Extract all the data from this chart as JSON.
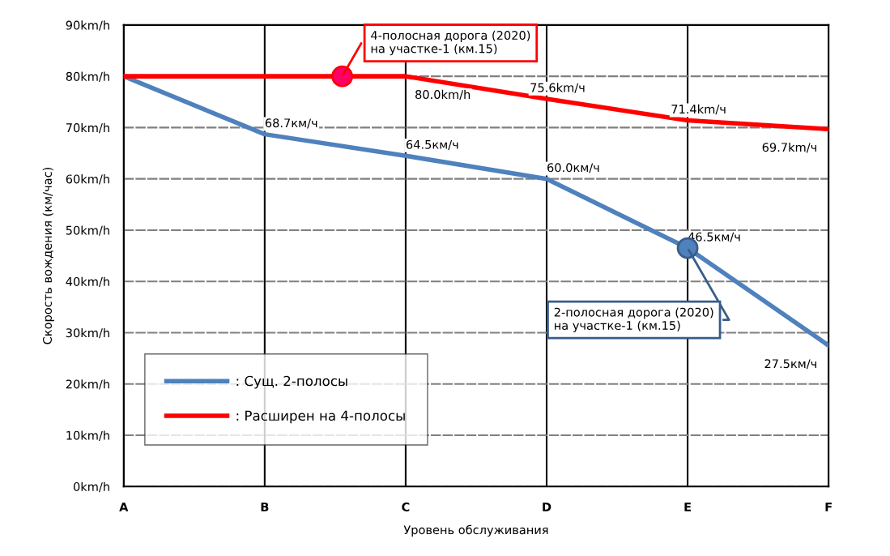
{
  "chart_data": {
    "type": "line",
    "xlabel": "Уровень обслуживания",
    "ylabel": "Скорость вождения (км/час)",
    "categories": [
      "A",
      "B",
      "C",
      "D",
      "E",
      "F"
    ],
    "ylim": [
      0,
      90
    ],
    "yticks": [
      {
        "value": 0,
        "label": "0km/h"
      },
      {
        "value": 10,
        "label": "10km/h"
      },
      {
        "value": 20,
        "label": "20km/h"
      },
      {
        "value": 30,
        "label": "30km/h"
      },
      {
        "value": 40,
        "label": "40km/h"
      },
      {
        "value": 50,
        "label": "50km/h"
      },
      {
        "value": 60,
        "label": "60km/h"
      },
      {
        "value": 70,
        "label": "70km/h"
      },
      {
        "value": 80,
        "label": "80km/h"
      },
      {
        "value": 90,
        "label": "90km/h"
      }
    ],
    "grid": true,
    "legend": "bottom left",
    "series": [
      {
        "name": ": Сущ. 2-полосы",
        "color": "#4f81bd",
        "values": [
          80,
          68.7,
          64.5,
          60.0,
          46.5,
          27.5
        ],
        "value_labels": [
          null,
          "68.7км/ч",
          "64.5км/ч",
          "60.0км/ч",
          "46.5км/ч",
          "27.5км/ч"
        ]
      },
      {
        "name": ": Расширен на 4-полосы",
        "color": "#ff0000",
        "values": [
          80,
          80,
          80.0,
          75.6,
          71.4,
          69.7
        ],
        "value_labels": [
          null,
          null,
          "80.0km/h",
          "75.6km/ч",
          "71.4km/ч",
          "69.7km/ч"
        ]
      }
    ],
    "annotations": [
      "4-полосная дорога (2020)\nна участке-1 (км.15)",
      {
        "text": "2-полосная дорога (2020)\nна участке-1 (км.15)",
        "x": "E",
        "y": 46.5
      }
    ]
  }
}
